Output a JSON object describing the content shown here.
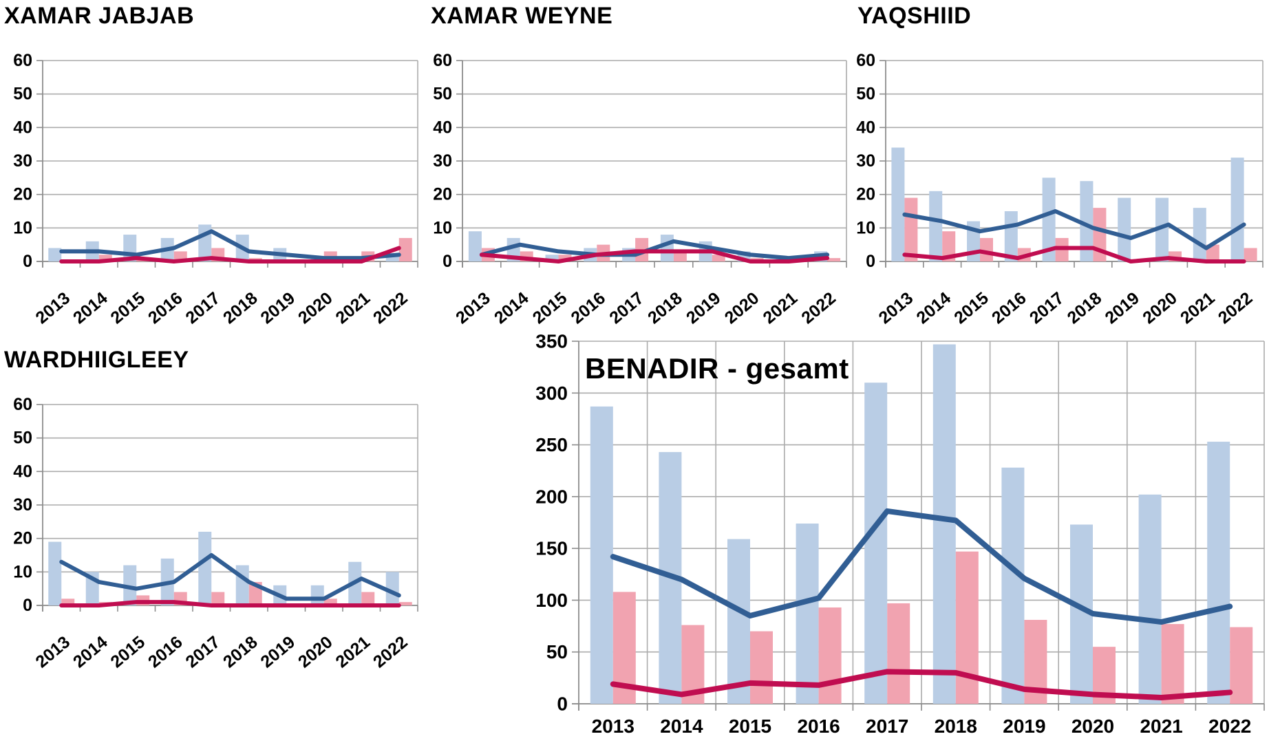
{
  "page": {
    "background": "#FFFFFF"
  },
  "colors": {
    "bar_blue": "#B9CDE5",
    "bar_pink": "#F1A3B0",
    "line_blue": "#315E94",
    "line_red": "#C00D50",
    "grid": "#ACACAC",
    "axis": "#8C8C8C",
    "text": "#000000"
  },
  "chart_data": [
    {
      "type": "bar",
      "title": "XAMAR JABJAB",
      "categories": [
        "2013",
        "2014",
        "2015",
        "2016",
        "2017",
        "2018",
        "2019",
        "2020",
        "2021",
        "2022"
      ],
      "ylim": [
        0,
        60
      ],
      "ytick_step": 10,
      "grid": "horizontal",
      "legend": "none",
      "series": [
        {
          "name": "light-blue-bars",
          "render": "bar",
          "color_key": "bar_blue",
          "values": [
            4,
            6,
            8,
            7,
            11,
            8,
            4,
            1,
            1,
            2
          ]
        },
        {
          "name": "pink-bars",
          "render": "bar",
          "color_key": "bar_pink",
          "values": [
            0,
            2,
            1,
            3,
            4,
            1,
            0,
            3,
            3,
            7
          ]
        },
        {
          "name": "dark-blue-line",
          "render": "line",
          "color_key": "line_blue",
          "values": [
            3,
            3,
            2,
            4,
            9,
            3,
            2,
            1,
            1,
            2
          ]
        },
        {
          "name": "dark-red-line",
          "render": "line",
          "color_key": "line_red",
          "values": [
            0,
            0,
            1,
            0,
            1,
            0,
            0,
            0,
            0,
            4
          ]
        }
      ]
    },
    {
      "type": "bar",
      "title": "XAMAR WEYNE",
      "categories": [
        "2013",
        "2014",
        "2015",
        "2016",
        "2017",
        "2018",
        "2019",
        "2020",
        "2021",
        "2022"
      ],
      "ylim": [
        0,
        60
      ],
      "ytick_step": 10,
      "grid": "horizontal",
      "legend": "none",
      "series": [
        {
          "name": "light-blue-bars",
          "render": "bar",
          "color_key": "bar_blue",
          "values": [
            9,
            7,
            2,
            4,
            4,
            8,
            6,
            3,
            1,
            3
          ]
        },
        {
          "name": "pink-bars",
          "render": "bar",
          "color_key": "bar_pink",
          "values": [
            4,
            3,
            2,
            5,
            7,
            3,
            2,
            1,
            0,
            1
          ]
        },
        {
          "name": "dark-blue-line",
          "render": "line",
          "color_key": "line_blue",
          "values": [
            2,
            5,
            3,
            2,
            2,
            6,
            4,
            2,
            1,
            2
          ]
        },
        {
          "name": "dark-red-line",
          "render": "line",
          "color_key": "line_red",
          "values": [
            2,
            1,
            0,
            2,
            3,
            3,
            3,
            0,
            0,
            1
          ]
        }
      ]
    },
    {
      "type": "bar",
      "title": "YAQSHIID",
      "categories": [
        "2013",
        "2014",
        "2015",
        "2016",
        "2017",
        "2018",
        "2019",
        "2020",
        "2021",
        "2022"
      ],
      "ylim": [
        0,
        60
      ],
      "ytick_step": 10,
      "grid": "horizontal",
      "legend": "none",
      "series": [
        {
          "name": "light-blue-bars",
          "render": "bar",
          "color_key": "bar_blue",
          "values": [
            34,
            21,
            12,
            15,
            25,
            24,
            19,
            19,
            16,
            31
          ]
        },
        {
          "name": "pink-bars",
          "render": "bar",
          "color_key": "bar_pink",
          "values": [
            19,
            9,
            7,
            4,
            7,
            16,
            0,
            3,
            5,
            4
          ]
        },
        {
          "name": "dark-blue-line",
          "render": "line",
          "color_key": "line_blue",
          "values": [
            14,
            12,
            9,
            11,
            15,
            10,
            7,
            11,
            4,
            11
          ]
        },
        {
          "name": "dark-red-line",
          "render": "line",
          "color_key": "line_red",
          "values": [
            2,
            1,
            3,
            1,
            4,
            4,
            0,
            1,
            0,
            0
          ]
        }
      ]
    },
    {
      "type": "bar",
      "title": "WARDHIIGLEEY",
      "categories": [
        "2013",
        "2014",
        "2015",
        "2016",
        "2017",
        "2018",
        "2019",
        "2020",
        "2021",
        "2022"
      ],
      "ylim": [
        0,
        60
      ],
      "ytick_step": 10,
      "grid": "horizontal",
      "legend": "none",
      "series": [
        {
          "name": "light-blue-bars",
          "render": "bar",
          "color_key": "bar_blue",
          "values": [
            19,
            10,
            12,
            14,
            22,
            12,
            6,
            6,
            13,
            10
          ]
        },
        {
          "name": "pink-bars",
          "render": "bar",
          "color_key": "bar_pink",
          "values": [
            2,
            1,
            3,
            4,
            4,
            7,
            0,
            2,
            4,
            1
          ]
        },
        {
          "name": "dark-blue-line",
          "render": "line",
          "color_key": "line_blue",
          "values": [
            13,
            7,
            5,
            7,
            15,
            7,
            2,
            2,
            8,
            3
          ]
        },
        {
          "name": "dark-red-line",
          "render": "line",
          "color_key": "line_red",
          "values": [
            0,
            0,
            1,
            1,
            0,
            0,
            0,
            0,
            0,
            0
          ]
        }
      ]
    },
    {
      "type": "bar",
      "title": "BENADIR - gesamt",
      "title_position": "inside",
      "categories": [
        "2013",
        "2014",
        "2015",
        "2016",
        "2017",
        "2018",
        "2019",
        "2020",
        "2021",
        "2022"
      ],
      "ylim": [
        0,
        350
      ],
      "ytick_step": 50,
      "grid": "both",
      "legend": "none",
      "series": [
        {
          "name": "light-blue-bars",
          "render": "bar",
          "color_key": "bar_blue",
          "values": [
            287,
            243,
            159,
            174,
            310,
            347,
            228,
            173,
            202,
            253
          ]
        },
        {
          "name": "pink-bars",
          "render": "bar",
          "color_key": "bar_pink",
          "values": [
            108,
            76,
            70,
            93,
            97,
            147,
            81,
            55,
            77,
            74
          ]
        },
        {
          "name": "dark-blue-line",
          "render": "line",
          "color_key": "line_blue",
          "values": [
            142,
            120,
            85,
            102,
            186,
            177,
            121,
            87,
            79,
            94
          ]
        },
        {
          "name": "dark-red-line",
          "render": "line",
          "color_key": "line_red",
          "values": [
            19,
            9,
            20,
            18,
            31,
            30,
            14,
            9,
            6,
            11
          ]
        }
      ]
    }
  ]
}
